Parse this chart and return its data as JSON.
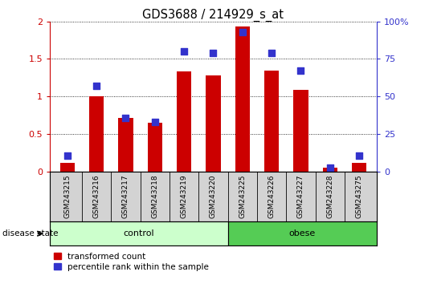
{
  "title": "GDS3688 / 214929_s_at",
  "samples": [
    "GSM243215",
    "GSM243216",
    "GSM243217",
    "GSM243218",
    "GSM243219",
    "GSM243220",
    "GSM243225",
    "GSM243226",
    "GSM243227",
    "GSM243228",
    "GSM243275"
  ],
  "red_values": [
    0.12,
    1.0,
    0.72,
    0.65,
    1.33,
    1.28,
    1.93,
    1.35,
    1.09,
    0.05,
    0.12
  ],
  "blue_values_pct": [
    11,
    57,
    36,
    33,
    80,
    79,
    93,
    79,
    67,
    3,
    11
  ],
  "groups": [
    {
      "label": "control",
      "start": 0,
      "end": 6,
      "color": "#ccffcc"
    },
    {
      "label": "obese",
      "start": 6,
      "end": 11,
      "color": "#55cc55"
    }
  ],
  "ylim_left": [
    0,
    2
  ],
  "ylim_right": [
    0,
    100
  ],
  "yticks_left": [
    0,
    0.5,
    1.0,
    1.5,
    2.0
  ],
  "ytick_labels_left": [
    "0",
    "0.5",
    "1",
    "1.5",
    "2"
  ],
  "yticks_right": [
    0,
    25,
    50,
    75,
    100
  ],
  "ytick_labels_right": [
    "0",
    "25",
    "50",
    "75",
    "100%"
  ],
  "bar_color": "#cc0000",
  "dot_color": "#3333cc",
  "bar_width": 0.5,
  "dot_size": 35,
  "tick_area_color": "#d3d3d3",
  "legend_red_label": "transformed count",
  "legend_blue_label": "percentile rank within the sample",
  "disease_state_label": "disease state"
}
